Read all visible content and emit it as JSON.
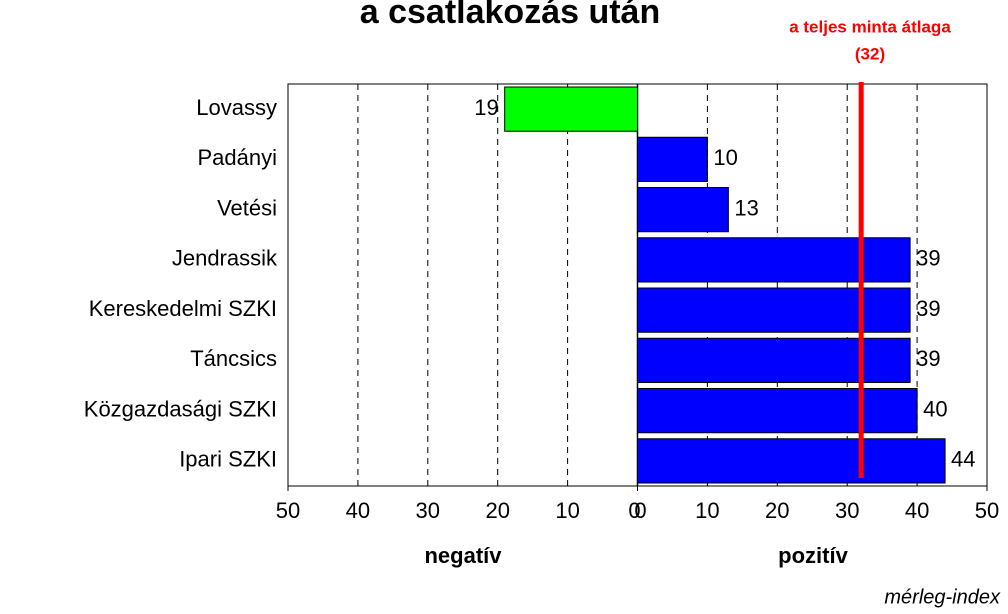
{
  "chart_data": {
    "type": "bar",
    "orientation": "horizontal",
    "title": "a csatlakozás után",
    "categories": [
      "Lovassy",
      "Padányi",
      "Vetési",
      "Jendrassik",
      "Kereskedelmi SZKI",
      "Táncsics",
      "Közgazdasági SZKI",
      "Ipari SZKI"
    ],
    "values": [
      -19,
      10,
      13,
      39,
      39,
      39,
      40,
      44
    ],
    "value_labels": [
      "19",
      "10",
      "13",
      "39",
      "39",
      "39",
      "40",
      "44"
    ],
    "colors": [
      "#00ff00",
      "#0000ff",
      "#0000ff",
      "#0000ff",
      "#0000ff",
      "#0000ff",
      "#0000ff",
      "#0000ff"
    ],
    "xlim": [
      -50,
      50
    ],
    "xticks": [
      {
        "value": -50,
        "label": "50"
      },
      {
        "value": -40,
        "label": "40"
      },
      {
        "value": -30,
        "label": "30"
      },
      {
        "value": -20,
        "label": "20"
      },
      {
        "value": -10,
        "label": "10"
      },
      {
        "value": 0,
        "label": "0"
      },
      0,
      10,
      20,
      30,
      40,
      50
    ],
    "grid": true,
    "x_label_negative": "negatív",
    "x_label_positive": "pozitív",
    "x_label": "mérleg-index",
    "reference_line": {
      "value": 32,
      "label": "a teljes minta átlaga",
      "value_label": "(32)",
      "color": "#ff0000"
    }
  }
}
